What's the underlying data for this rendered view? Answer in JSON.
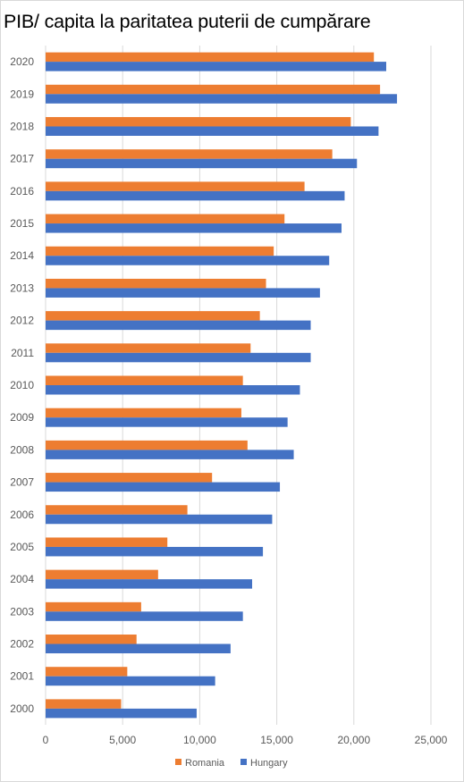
{
  "title": "PIB/ capita la paritatea puterii de cumpărare",
  "colors": {
    "romania": "#ED7D31",
    "hungary": "#4472C4",
    "grid": "#d9d9d9",
    "tick_text": "#595959"
  },
  "chart_data": {
    "type": "bar",
    "orientation": "horizontal",
    "title": "PIB/ capita la paritatea puterii de cumpărare",
    "categories": [
      "2020",
      "2019",
      "2018",
      "2017",
      "2016",
      "2015",
      "2014",
      "2013",
      "2012",
      "2011",
      "2010",
      "2009",
      "2008",
      "2007",
      "2006",
      "2005",
      "2004",
      "2003",
      "2002",
      "2001",
      "2000"
    ],
    "series": [
      {
        "name": "Romania",
        "color": "#ED7D31",
        "values": [
          21300,
          21700,
          19800,
          18600,
          16800,
          15500,
          14800,
          14300,
          13900,
          13300,
          12800,
          12700,
          13100,
          10800,
          9200,
          7900,
          7300,
          6200,
          5900,
          5300,
          4900
        ]
      },
      {
        "name": "Hungary",
        "color": "#4472C4",
        "values": [
          22100,
          22800,
          21600,
          20200,
          19400,
          19200,
          18400,
          17800,
          17200,
          17200,
          16500,
          15700,
          16100,
          15200,
          14700,
          14100,
          13400,
          12800,
          12000,
          11000,
          9800
        ]
      }
    ],
    "xlim": [
      0,
      25000
    ],
    "xticks": [
      "0",
      "5,000",
      "10,000",
      "15,000",
      "20,000",
      "25,000"
    ],
    "xtick_values": [
      0,
      5000,
      10000,
      15000,
      20000,
      25000
    ],
    "grid": true,
    "legend_position": "bottom"
  }
}
